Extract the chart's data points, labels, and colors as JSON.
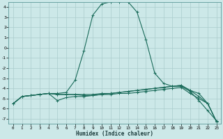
{
  "xlabel": "Humidex (Indice chaleur)",
  "background_color": "#cce8e8",
  "grid_color": "#aacccc",
  "line_color": "#1a6b5a",
  "xlim": [
    -0.5,
    23.5
  ],
  "ylim": [
    -7.5,
    4.5
  ],
  "xticks": [
    0,
    1,
    2,
    3,
    4,
    5,
    6,
    7,
    8,
    9,
    10,
    11,
    12,
    13,
    14,
    15,
    16,
    17,
    18,
    19,
    20,
    21,
    22,
    23
  ],
  "yticks": [
    -7,
    -6,
    -5,
    -4,
    -3,
    -2,
    -1,
    0,
    1,
    2,
    3,
    4
  ],
  "line1_x": [
    0,
    1,
    2,
    3,
    4,
    5,
    6,
    7,
    8,
    9,
    10,
    11,
    12,
    13,
    14,
    15,
    16,
    17,
    18,
    19,
    20,
    21,
    22,
    23
  ],
  "line1_y": [
    -5.5,
    -4.8,
    -4.7,
    -4.6,
    -4.5,
    -4.5,
    -4.4,
    -3.2,
    -0.3,
    3.2,
    4.3,
    4.5,
    4.5,
    4.5,
    3.5,
    0.8,
    -2.5,
    -3.5,
    -3.8,
    -3.8,
    -4.3,
    -5.2,
    -6.2,
    -7.2
  ],
  "line2_x": [
    0,
    1,
    2,
    3,
    4,
    5,
    6,
    7,
    8,
    9,
    10,
    11,
    12,
    13,
    14,
    15,
    16,
    17,
    18,
    19,
    20,
    21,
    22,
    23
  ],
  "line2_y": [
    -5.5,
    -4.8,
    -4.7,
    -4.6,
    -4.5,
    -5.2,
    -4.9,
    -4.8,
    -4.8,
    -4.7,
    -4.6,
    -4.5,
    -4.4,
    -4.3,
    -4.2,
    -4.1,
    -4.0,
    -3.9,
    -3.8,
    -3.7,
    -4.2,
    -4.5,
    -5.5,
    -7.3
  ],
  "line3_x": [
    0,
    1,
    2,
    3,
    4,
    5,
    6,
    7,
    8,
    9,
    10,
    11,
    12,
    13,
    14,
    15,
    16,
    17,
    18,
    19,
    20,
    21,
    22,
    23
  ],
  "line3_y": [
    -5.5,
    -4.8,
    -4.7,
    -4.6,
    -4.5,
    -4.6,
    -4.6,
    -4.6,
    -4.6,
    -4.6,
    -4.5,
    -4.5,
    -4.4,
    -4.3,
    -4.2,
    -4.1,
    -4.0,
    -3.9,
    -3.8,
    -3.7,
    -4.2,
    -4.8,
    -5.5,
    -7.3
  ],
  "line4_x": [
    0,
    1,
    2,
    3,
    4,
    5,
    6,
    7,
    8,
    9,
    10,
    11,
    12,
    13,
    14,
    15,
    16,
    17,
    18,
    19,
    20,
    21,
    22,
    23
  ],
  "line4_y": [
    -5.5,
    -4.8,
    -4.7,
    -4.6,
    -4.5,
    -4.6,
    -4.6,
    -4.6,
    -4.7,
    -4.7,
    -4.6,
    -4.6,
    -4.5,
    -4.5,
    -4.4,
    -4.3,
    -4.2,
    -4.1,
    -4.0,
    -3.9,
    -4.5,
    -5.0,
    -5.5,
    -7.3
  ]
}
